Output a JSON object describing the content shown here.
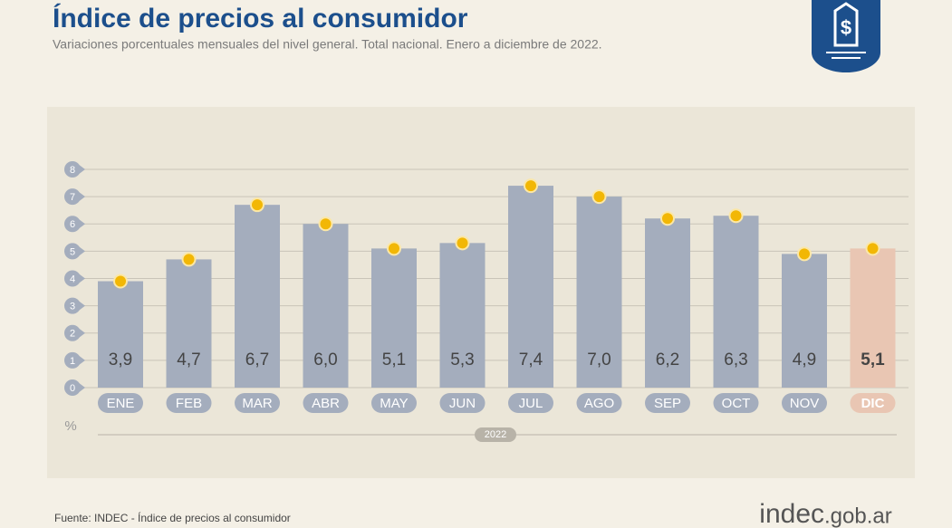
{
  "chart_data": {
    "type": "bar",
    "title": "Índice de precios al consumidor",
    "subtitle": "Variaciones porcentuales mensuales del nivel general. Total nacional. Enero a diciembre de 2022.",
    "categories": [
      "ENE",
      "FEB",
      "MAR",
      "ABR",
      "MAY",
      "JUN",
      "JUL",
      "AGO",
      "SEP",
      "OCT",
      "NOV",
      "DIC"
    ],
    "values": [
      3.9,
      4.7,
      6.7,
      6.0,
      5.1,
      5.3,
      7.4,
      7.0,
      6.2,
      6.3,
      4.9,
      5.1
    ],
    "value_labels": [
      "3,9",
      "4,7",
      "6,7",
      "6,0",
      "5,1",
      "5,3",
      "7,4",
      "7,0",
      "6,2",
      "6,3",
      "4,9",
      "5,1"
    ],
    "colors": [
      "#a4adbd",
      "#a4adbd",
      "#a4adbd",
      "#a4adbd",
      "#a4adbd",
      "#a4adbd",
      "#a4adbd",
      "#a4adbd",
      "#a4adbd",
      "#a4adbd",
      "#a4adbd",
      "#e9c6b3"
    ],
    "marker_color": "#f2b705",
    "ylim": [
      0,
      8
    ],
    "yticks": [
      0,
      1,
      2,
      3,
      4,
      5,
      6,
      7,
      8
    ],
    "grid": true,
    "y_unit": "%",
    "x_group_label": "2022",
    "source": "Fuente: INDEC - Índice de precios al consumidor",
    "brand": {
      "name": "indec",
      "domain": ".gob.ar"
    }
  }
}
